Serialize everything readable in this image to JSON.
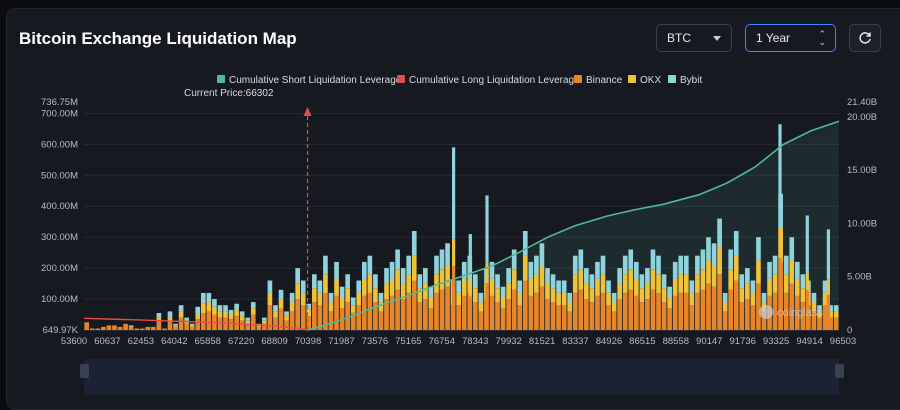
{
  "header": {
    "title": "Bitcoin Exchange Liquidation Map",
    "coin_select": "BTC",
    "range_select": "1 Year"
  },
  "watermark": "coinglass",
  "colors": {
    "short_cum": "#4fb99a",
    "long_cum": "#e54b4b",
    "binance": "#e8852a",
    "okx": "#f0c23a",
    "bybit": "#8fd3dc",
    "background": "#16191f"
  },
  "chart_data": {
    "type": "bar",
    "title": "Bitcoin Exchange Liquidation Map",
    "legend": [
      "Cumulative Short Liquidation Leverage",
      "Cumulative Long Liquidation Leverage",
      "Binance",
      "OKX",
      "Bybit"
    ],
    "legend_placement": "top",
    "x_tick_labels": [
      "53600",
      "60637",
      "62453",
      "64042",
      "65858",
      "67220",
      "68809",
      "70398",
      "71987",
      "73576",
      "75165",
      "76754",
      "78343",
      "79932",
      "81521",
      "83337",
      "84926",
      "86515",
      "88558",
      "90147",
      "91736",
      "93325",
      "94914",
      "96503"
    ],
    "xlim": [
      53600,
      96503
    ],
    "left_axis": {
      "tick_labels": [
        "649.97K",
        "100.00M",
        "200.00M",
        "300.00M",
        "400.00M",
        "500.00M",
        "600.00M",
        "700.00M",
        "736.75M"
      ],
      "tick_values": [
        0.65,
        100,
        200,
        300,
        400,
        500,
        600,
        700,
        736.75
      ],
      "unit": "M",
      "ylim": [
        0,
        736.75
      ]
    },
    "right_axis": {
      "tick_labels": [
        "0",
        "5.00B",
        "10.00B",
        "15.00B",
        "20.00B",
        "21.40B"
      ],
      "tick_values": [
        0,
        5,
        10,
        15,
        20,
        21.4
      ],
      "unit": "B",
      "ylim": [
        0,
        21.4
      ]
    },
    "current_price_label": "Current Price:66302",
    "current_price": 66302,
    "cumulative_long": {
      "x": [
        53600,
        57600,
        61600,
        64042,
        65858,
        66302
      ],
      "y": [
        1.1,
        0.9,
        0.65,
        0.4,
        0.15,
        0.0
      ]
    },
    "cumulative_short": {
      "x": [
        66302,
        67220,
        68809,
        70398,
        71987,
        73576,
        75165,
        76754,
        78343,
        79932,
        81521,
        83337,
        84926,
        86515,
        88558,
        90147,
        91736,
        93325,
        94914,
        96503
      ],
      "y": [
        0.0,
        0.4,
        1.3,
        2.3,
        3.2,
        4.2,
        5.1,
        6.0,
        7.3,
        8.7,
        9.8,
        10.7,
        11.3,
        11.8,
        12.7,
        13.8,
        15.3,
        17.4,
        18.7,
        19.6
      ]
    },
    "series": [
      {
        "name": "Binance",
        "values": [
          25,
          5,
          5,
          10,
          15,
          15,
          10,
          20,
          10,
          5,
          5,
          10,
          10,
          30,
          5,
          25,
          10,
          40,
          20,
          10,
          35,
          55,
          60,
          50,
          40,
          40,
          35,
          45,
          30,
          20,
          50,
          10,
          20,
          80,
          40,
          70,
          30,
          60,
          100,
          80,
          45,
          90,
          80,
          120,
          60,
          110,
          70,
          90,
          55,
          80,
          110,
          120,
          90,
          60,
          100,
          110,
          130,
          100,
          120,
          160,
          90,
          100,
          70,
          120,
          130,
          140,
          80,
          80,
          110,
          120,
          90,
          60,
          100,
          110,
          90,
          70,
          100,
          130,
          80,
          160,
          110,
          120,
          140,
          100,
          90,
          80,
          80,
          60,
          120,
          130,
          100,
          90,
          110,
          120,
          80,
          60,
          100,
          120,
          130,
          110,
          90,
          100,
          130,
          120,
          90,
          70,
          110,
          120,
          120,
          80,
          120,
          130,
          150,
          140,
          180,
          60,
          130,
          160,
          90,
          100,
          80,
          150,
          60,
          110,
          120,
          220,
          120,
          150,
          110,
          90,
          80,
          60,
          40,
          80,
          40,
          40
        ]
      },
      {
        "name": "OKX",
        "values": [
          0,
          0,
          0,
          0,
          0,
          0,
          0,
          0,
          5,
          0,
          0,
          0,
          0,
          10,
          0,
          15,
          5,
          20,
          10,
          5,
          20,
          30,
          30,
          25,
          20,
          20,
          15,
          20,
          15,
          10,
          20,
          5,
          10,
          40,
          20,
          30,
          15,
          30,
          50,
          40,
          20,
          45,
          40,
          60,
          30,
          55,
          35,
          45,
          25,
          40,
          55,
          60,
          45,
          30,
          50,
          55,
          65,
          50,
          60,
          80,
          45,
          50,
          35,
          60,
          65,
          70,
          40,
          40,
          55,
          60,
          45,
          30,
          50,
          55,
          45,
          35,
          50,
          65,
          40,
          80,
          55,
          60,
          70,
          50,
          45,
          40,
          40,
          30,
          60,
          65,
          50,
          45,
          55,
          60,
          40,
          30,
          50,
          60,
          65,
          55,
          45,
          50,
          65,
          60,
          45,
          35,
          55,
          60,
          60,
          40,
          60,
          65,
          75,
          70,
          90,
          30,
          65,
          80,
          45,
          50,
          40,
          75,
          30,
          55,
          60,
          110,
          60,
          75,
          55,
          45,
          40,
          30,
          20,
          40,
          20,
          20
        ]
      },
      {
        "name": "Bybit",
        "values": [
          0,
          0,
          0,
          0,
          0,
          0,
          0,
          0,
          0,
          0,
          0,
          0,
          0,
          15,
          0,
          20,
          5,
          20,
          10,
          5,
          20,
          35,
          30,
          25,
          20,
          20,
          15,
          20,
          15,
          10,
          20,
          5,
          10,
          40,
          20,
          30,
          15,
          30,
          50,
          40,
          20,
          45,
          40,
          60,
          30,
          55,
          35,
          45,
          25,
          40,
          55,
          60,
          45,
          30,
          50,
          55,
          65,
          50,
          60,
          80,
          45,
          50,
          35,
          60,
          65,
          70,
          40,
          40,
          55,
          60,
          45,
          30,
          50,
          55,
          45,
          35,
          50,
          65,
          40,
          80,
          55,
          60,
          70,
          50,
          45,
          40,
          40,
          30,
          60,
          65,
          50,
          45,
          55,
          60,
          40,
          30,
          50,
          60,
          65,
          55,
          45,
          50,
          65,
          60,
          45,
          35,
          55,
          60,
          60,
          40,
          60,
          65,
          75,
          70,
          90,
          30,
          65,
          80,
          45,
          50,
          40,
          75,
          30,
          55,
          60,
          110,
          60,
          75,
          55,
          45,
          40,
          30,
          20,
          40,
          20,
          20
        ]
      }
    ],
    "tall_bars_total_m": {
      "74600": 590,
      "76500": 435,
      "75550": 310,
      "93150": 665,
      "94700": 370,
      "95900": 325
    }
  }
}
